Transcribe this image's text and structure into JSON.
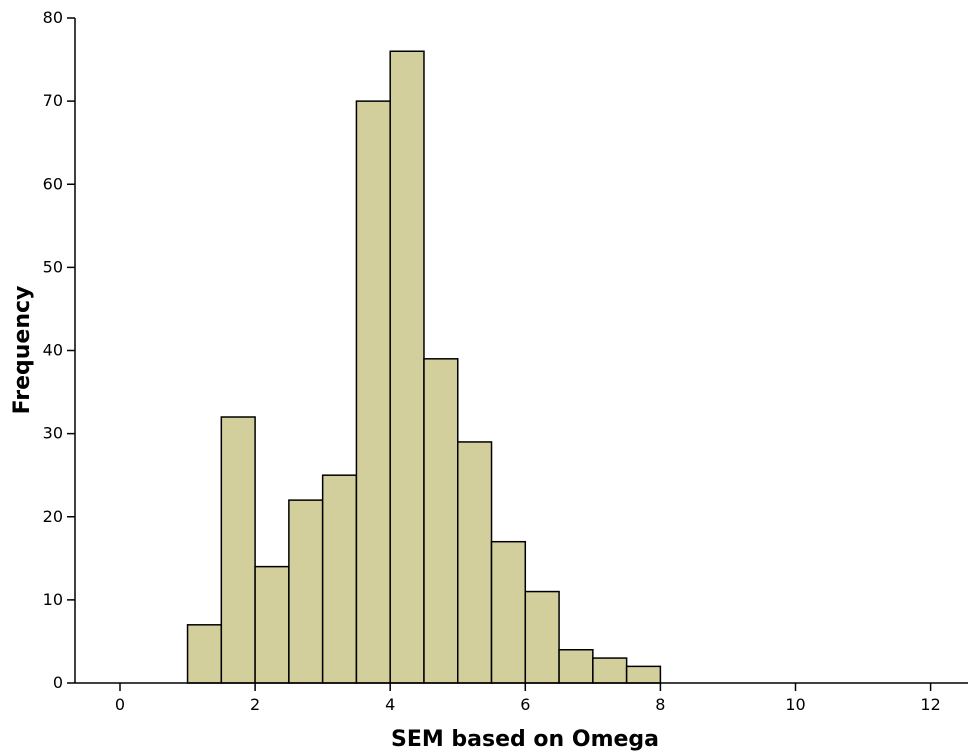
{
  "chart_data": {
    "type": "bar",
    "subtype": "histogram",
    "xlabel": "SEM based on Omega",
    "ylabel": "Frequency",
    "xlim": [
      -0.7,
      12.5
    ],
    "ylim": [
      0,
      80
    ],
    "xticks": [
      0,
      2,
      4,
      6,
      8,
      10,
      12
    ],
    "yticks": [
      0,
      10,
      20,
      30,
      40,
      50,
      60,
      70,
      80
    ],
    "bin_width": 0.5,
    "bins": [
      {
        "start": 1.0,
        "end": 1.5,
        "value": 7
      },
      {
        "start": 1.5,
        "end": 2.0,
        "value": 32
      },
      {
        "start": 2.0,
        "end": 2.5,
        "value": 14
      },
      {
        "start": 2.5,
        "end": 3.0,
        "value": 22
      },
      {
        "start": 3.0,
        "end": 3.5,
        "value": 25
      },
      {
        "start": 3.5,
        "end": 4.0,
        "value": 70
      },
      {
        "start": 4.0,
        "end": 4.5,
        "value": 76
      },
      {
        "start": 4.5,
        "end": 5.0,
        "value": 39
      },
      {
        "start": 5.0,
        "end": 5.5,
        "value": 29
      },
      {
        "start": 5.5,
        "end": 6.0,
        "value": 17
      },
      {
        "start": 6.0,
        "end": 6.5,
        "value": 11
      },
      {
        "start": 6.5,
        "end": 7.0,
        "value": 4
      },
      {
        "start": 7.0,
        "end": 7.5,
        "value": 3
      },
      {
        "start": 7.5,
        "end": 8.0,
        "value": 2
      }
    ],
    "grid": false,
    "colors": {
      "bar_fill": "#d3cf9c",
      "bar_stroke": "#000000",
      "axis": "#000000",
      "background": "#ffffff"
    }
  }
}
